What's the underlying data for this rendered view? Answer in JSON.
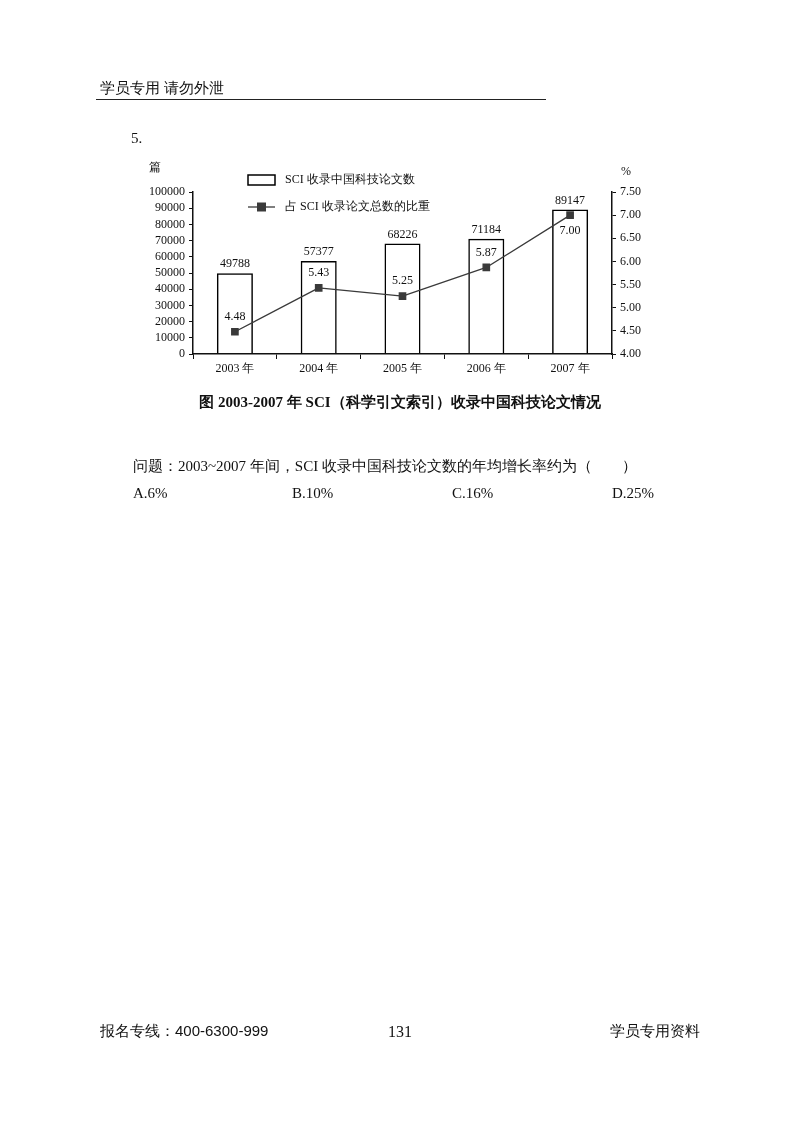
{
  "chart_data": {
    "type": "bar",
    "title": "图 2003-2007 年 SCI（科学引文索引）收录中国科技论文情况",
    "ylabel": "篇",
    "y2label": "%",
    "categories": [
      "2003 年",
      "2004 年",
      "2005 年",
      "2006 年",
      "2007 年"
    ],
    "series": [
      {
        "name": "SCI 收录中国科技论文数",
        "color": "#000000",
        "values": [
          49788,
          57377,
          68226,
          71184,
          89147
        ]
      },
      {
        "name": "占 SCI 收录论文总数的比重",
        "type": "line",
        "axis": "y2",
        "color": "#3a3a3a",
        "values": [
          4.48,
          5.43,
          5.25,
          5.87,
          7.0
        ],
        "value_labels": [
          "4.48",
          "5.43",
          "5.25",
          "5.87",
          "7.00"
        ]
      }
    ],
    "ylim": [
      0,
      100000
    ],
    "yticks": [
      0,
      10000,
      20000,
      30000,
      40000,
      50000,
      60000,
      70000,
      80000,
      90000,
      100000
    ],
    "y2lim": [
      4,
      7.5
    ],
    "y2ticks": [
      {
        "value": 4,
        "label": "4.00"
      },
      {
        "value": 4.5,
        "label": "4.50"
      },
      {
        "value": 5,
        "label": "5.00"
      },
      {
        "value": 5.5,
        "label": "5.50"
      },
      {
        "value": 6,
        "label": "6.00"
      },
      {
        "value": 6.5,
        "label": "6.50"
      },
      {
        "value": 7,
        "label": "7.00"
      },
      {
        "value": 7.5,
        "label": "7.50"
      }
    ],
    "data_labels": true,
    "legend": "top left",
    "grid": false,
    "marker": "square",
    "annotations": [
      "学员专用 请勿外泄",
      "5.",
      "问题：2003~2007 年间，SCI 收录中国科技论文数的年均增长率约为（　　）",
      "A.6%",
      "B.10%",
      "C.16%",
      "D.25%",
      "报名专线：400-6300-999",
      "131",
      "学员专用资料"
    ]
  }
}
